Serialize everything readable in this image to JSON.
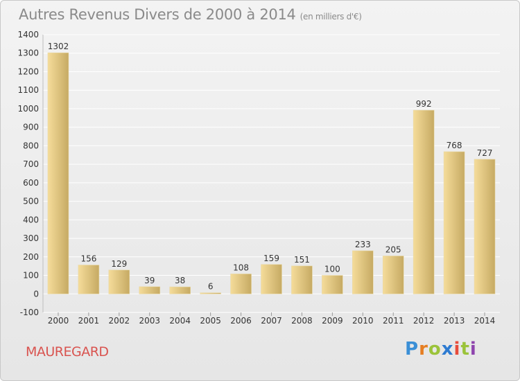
{
  "header": {
    "title": "Autres Revenus Divers de 2000 à 2014",
    "subtitle": "(en milliers d'€)"
  },
  "commune": "MAUREGARD",
  "logo": {
    "letters": [
      "P",
      "r",
      "o",
      "x",
      "i",
      "t",
      "i"
    ],
    "colors": [
      "#3a8fd6",
      "#e67e22",
      "#9bc33a",
      "#2e7bd1",
      "#e74c3c",
      "#9bc33a",
      "#8e44ad"
    ]
  },
  "colors": {
    "bar_light": "#f5dc9a",
    "bar_dark": "#c6aa63",
    "grid": "#ffffff",
    "commune": "#d9534f"
  },
  "chart_data": {
    "type": "bar",
    "title": "Autres Revenus Divers de 2000 à 2014",
    "subtitle": "(en milliers d'€)",
    "xlabel": "",
    "ylabel": "",
    "ylim": [
      -100,
      1400
    ],
    "yticks": [
      -100,
      0,
      100,
      200,
      300,
      400,
      500,
      600,
      700,
      800,
      900,
      1000,
      1100,
      1200,
      1300,
      1400
    ],
    "grid": true,
    "categories": [
      "2000",
      "2001",
      "2002",
      "2003",
      "2004",
      "2005",
      "2006",
      "2007",
      "2008",
      "2009",
      "2010",
      "2011",
      "2012",
      "2013",
      "2014"
    ],
    "values": [
      1302,
      156,
      129,
      39,
      38,
      6,
      108,
      159,
      151,
      100,
      233,
      205,
      992,
      768,
      727
    ]
  }
}
